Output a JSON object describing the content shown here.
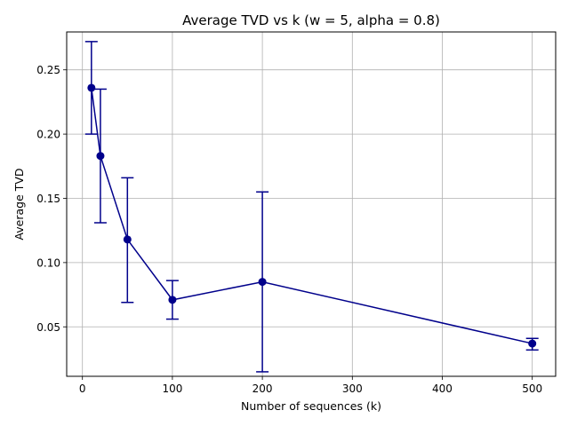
{
  "chart_data": {
    "type": "line",
    "title": "Average TVD vs k (w = 5, alpha = 0.8)",
    "xlabel": "Number of sequences (k)",
    "ylabel": "Average TVD",
    "xlim": [
      -17.5,
      526
    ],
    "ylim": [
      0.0115,
      0.2795
    ],
    "xticks": [
      0,
      100,
      200,
      300,
      400,
      500
    ],
    "xtick_labels": [
      "0",
      "100",
      "200",
      "300",
      "400",
      "500"
    ],
    "yticks": [
      0.05,
      0.1,
      0.15,
      0.2,
      0.25
    ],
    "ytick_labels": [
      "0.05",
      "0.10",
      "0.15",
      "0.20",
      "0.25"
    ],
    "grid": true,
    "series": [
      {
        "color": "#00008b",
        "x": [
          10,
          20,
          50,
          100,
          200,
          500
        ],
        "y": [
          0.236,
          0.183,
          0.118,
          0.071,
          0.085,
          0.037
        ],
        "err_low": [
          0.2,
          0.131,
          0.069,
          0.056,
          0.015,
          0.032
        ],
        "err_high": [
          0.272,
          0.235,
          0.166,
          0.086,
          0.155,
          0.041
        ]
      }
    ]
  }
}
